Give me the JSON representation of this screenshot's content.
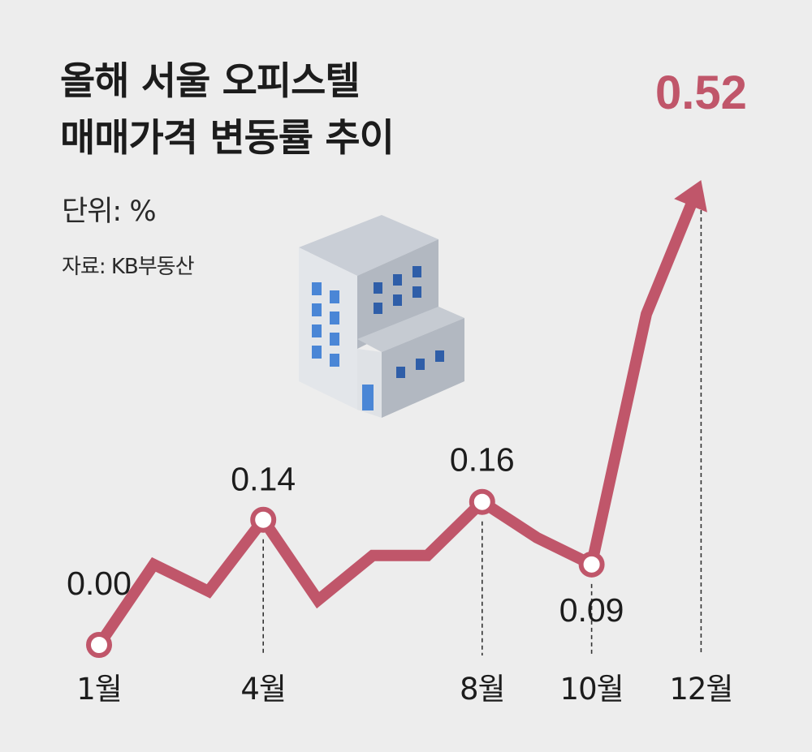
{
  "header": {
    "title_line1": "올해 서울 오피스텔",
    "title_line2": "매매가격 변동률 추이",
    "unit": "단위: %",
    "source": "자료: KB부동산"
  },
  "icons": {
    "building": "office-building-icon"
  },
  "colors": {
    "line": "#c0566a",
    "background": "#ededed",
    "text": "#1c1c1c"
  },
  "chart_data": {
    "type": "line",
    "title": "올해 서울 오피스텔 매매가격 변동률 추이",
    "unit": "%",
    "x": [
      1,
      2,
      3,
      4,
      5,
      6,
      7,
      8,
      9,
      10,
      11,
      12
    ],
    "x_tick_labels": [
      "1월",
      "4월",
      "8월",
      "10월",
      "12월"
    ],
    "x_tick_months": [
      1,
      4,
      8,
      10,
      12
    ],
    "values": [
      0.0,
      0.09,
      0.06,
      0.14,
      0.05,
      0.1,
      0.1,
      0.16,
      0.12,
      0.09,
      0.37,
      0.52
    ],
    "labeled_points": [
      {
        "month": 1,
        "label": "0.00"
      },
      {
        "month": 4,
        "label": "0.14"
      },
      {
        "month": 8,
        "label": "0.16"
      },
      {
        "month": 10,
        "label": "0.09"
      },
      {
        "month": 12,
        "label": "0.52",
        "highlight": true
      }
    ],
    "ylim": [
      0,
      0.52
    ],
    "grid": false,
    "legend": "none"
  }
}
